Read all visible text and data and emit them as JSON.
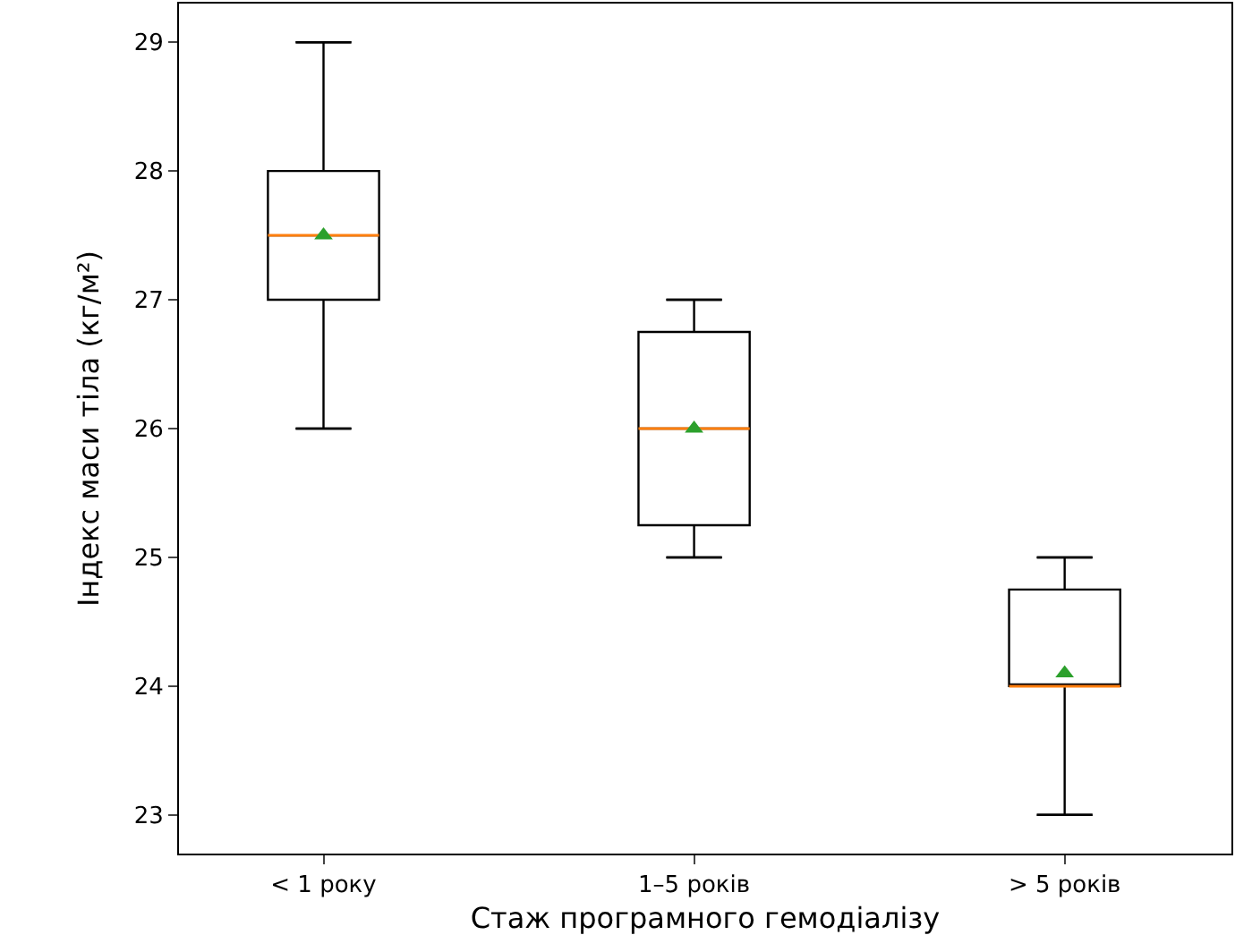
{
  "chart_data": {
    "type": "box",
    "xlabel": "Стаж програмного гемодіалізу",
    "ylabel": "Індекс маси тіла (кг/м²)",
    "categories": [
      "< 1 року",
      "1–5 років",
      "> 5 років"
    ],
    "series": [
      {
        "color": "#000000",
        "boxes": [
          {
            "low": 26,
            "q1": 27,
            "median": 27.5,
            "q3": 28,
            "high": 29,
            "mean": 27.5
          },
          {
            "low": 25,
            "q1": 25.25,
            "median": 26,
            "q3": 26.75,
            "high": 27,
            "mean": 26
          },
          {
            "low": 23,
            "q1": 24,
            "median": 24,
            "q3": 24.75,
            "high": 25,
            "mean": 24.1
          }
        ]
      }
    ],
    "ylim": [
      22.7,
      29.3
    ],
    "yticks": [
      23,
      24,
      25,
      26,
      27,
      28,
      29
    ],
    "marker": "triangle"
  }
}
